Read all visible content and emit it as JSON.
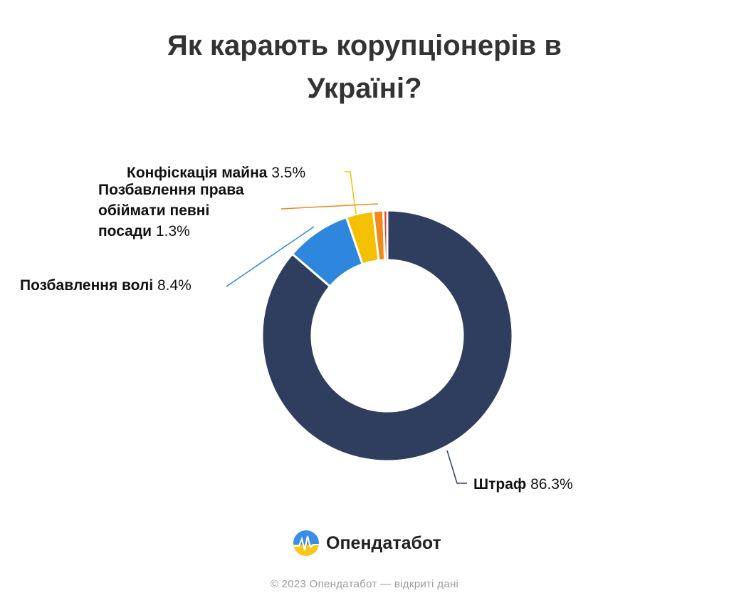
{
  "title_lines": [
    "Як карають корупціонерів в",
    "Україні?"
  ],
  "chart_data": {
    "type": "pie",
    "donut": true,
    "slices": [
      {
        "label": "Штраф",
        "value": 86.3,
        "value_text": "86.3%",
        "color": "#2f3e5e"
      },
      {
        "label": "Позбавлення волі",
        "value": 8.4,
        "value_text": "8.4%",
        "color": "#2f86dd"
      },
      {
        "label": "Конфіскація майна",
        "value": 3.5,
        "value_text": "3.5%",
        "color": "#f5c000"
      },
      {
        "label": "Позбавлення права обіймати певні посади",
        "value": 1.3,
        "value_text": "1.3%",
        "color": "#f08a1a"
      },
      {
        "label": "",
        "value": 0.5,
        "value_text": "",
        "color": "#e8412f"
      }
    ]
  },
  "brand": {
    "name": "Опендатабот"
  },
  "footer": "©  2023 Опендатабот — відкриті дані"
}
